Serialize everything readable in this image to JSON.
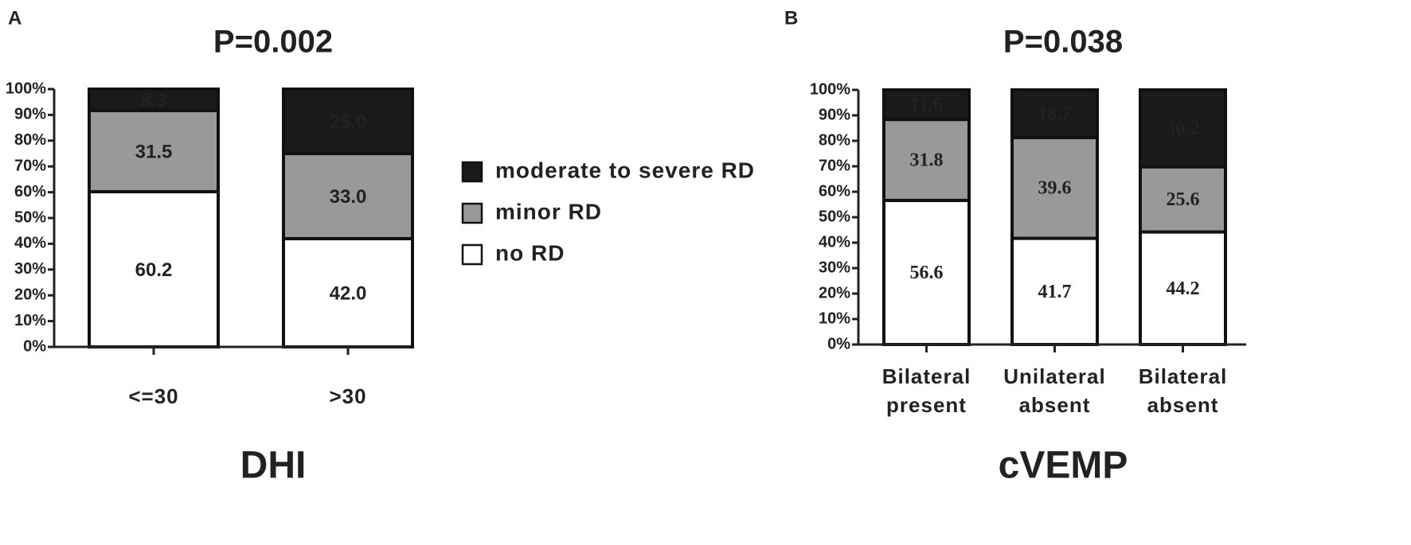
{
  "chart_data": [
    {
      "type": "stacked_bar",
      "panel": "A",
      "title": "P=0.002",
      "xlabel": "DHI",
      "categories": [
        "<=30",
        ">30"
      ],
      "series": [
        {
          "name": "no RD",
          "color": "#ffffff",
          "values": [
            60.2,
            42.0
          ],
          "value_labels": [
            "60.2",
            "42.0"
          ]
        },
        {
          "name": "minor RD",
          "color": "#999999",
          "values": [
            31.5,
            33.0
          ],
          "value_labels": [
            "31.5",
            "33.0"
          ]
        },
        {
          "name": "moderate to severe RD",
          "color": "#1a1a1a",
          "values": [
            8.3,
            25.0
          ],
          "value_labels": [
            "8.3",
            "25.0"
          ]
        }
      ],
      "ylim": [
        0,
        100
      ],
      "yticks": [
        {
          "value": 0,
          "label": "0%"
        },
        {
          "value": 10,
          "label": "10%"
        },
        {
          "value": 20,
          "label": "20%"
        },
        {
          "value": 30,
          "label": "30%"
        },
        {
          "value": 40,
          "label": "40%"
        },
        {
          "value": 50,
          "label": "50%"
        },
        {
          "value": 60,
          "label": "60%"
        },
        {
          "value": 70,
          "label": "70%"
        },
        {
          "value": 80,
          "label": "80%"
        },
        {
          "value": 90,
          "label": "90%"
        },
        {
          "value": 100,
          "label": "100%"
        }
      ],
      "legend": true
    },
    {
      "type": "stacked_bar",
      "panel": "B",
      "title": "P=0.038",
      "xlabel": "cVEMP",
      "categories": [
        "Bilateral present",
        "Unilateral absent",
        "Bilateral absent"
      ],
      "series": [
        {
          "color": "#ffffff",
          "values": [
            56.6,
            41.7,
            44.2
          ],
          "value_labels": [
            "56.6",
            "41.7",
            "44.2"
          ]
        },
        {
          "color": "#999999",
          "values": [
            31.8,
            39.6,
            25.6
          ],
          "value_labels": [
            "31.8",
            "39.6",
            "25.6"
          ]
        },
        {
          "color": "#1a1a1a",
          "values": [
            11.6,
            18.7,
            30.2
          ],
          "value_labels": [
            "11.6",
            "18.7",
            "30.2"
          ]
        }
      ],
      "ylim": [
        0,
        100
      ],
      "yticks": [
        {
          "value": 0,
          "label": "0%"
        },
        {
          "value": 10,
          "label": "10%"
        },
        {
          "value": 20,
          "label": "20%"
        },
        {
          "value": 30,
          "label": "30%"
        },
        {
          "value": 40,
          "label": "40%"
        },
        {
          "value": 50,
          "label": "50%"
        },
        {
          "value": 60,
          "label": "60%"
        },
        {
          "value": 70,
          "label": "70%"
        },
        {
          "value": 80,
          "label": "80%"
        },
        {
          "value": 90,
          "label": "90%"
        },
        {
          "value": 100,
          "label": "100%"
        }
      ],
      "legend": false
    }
  ]
}
